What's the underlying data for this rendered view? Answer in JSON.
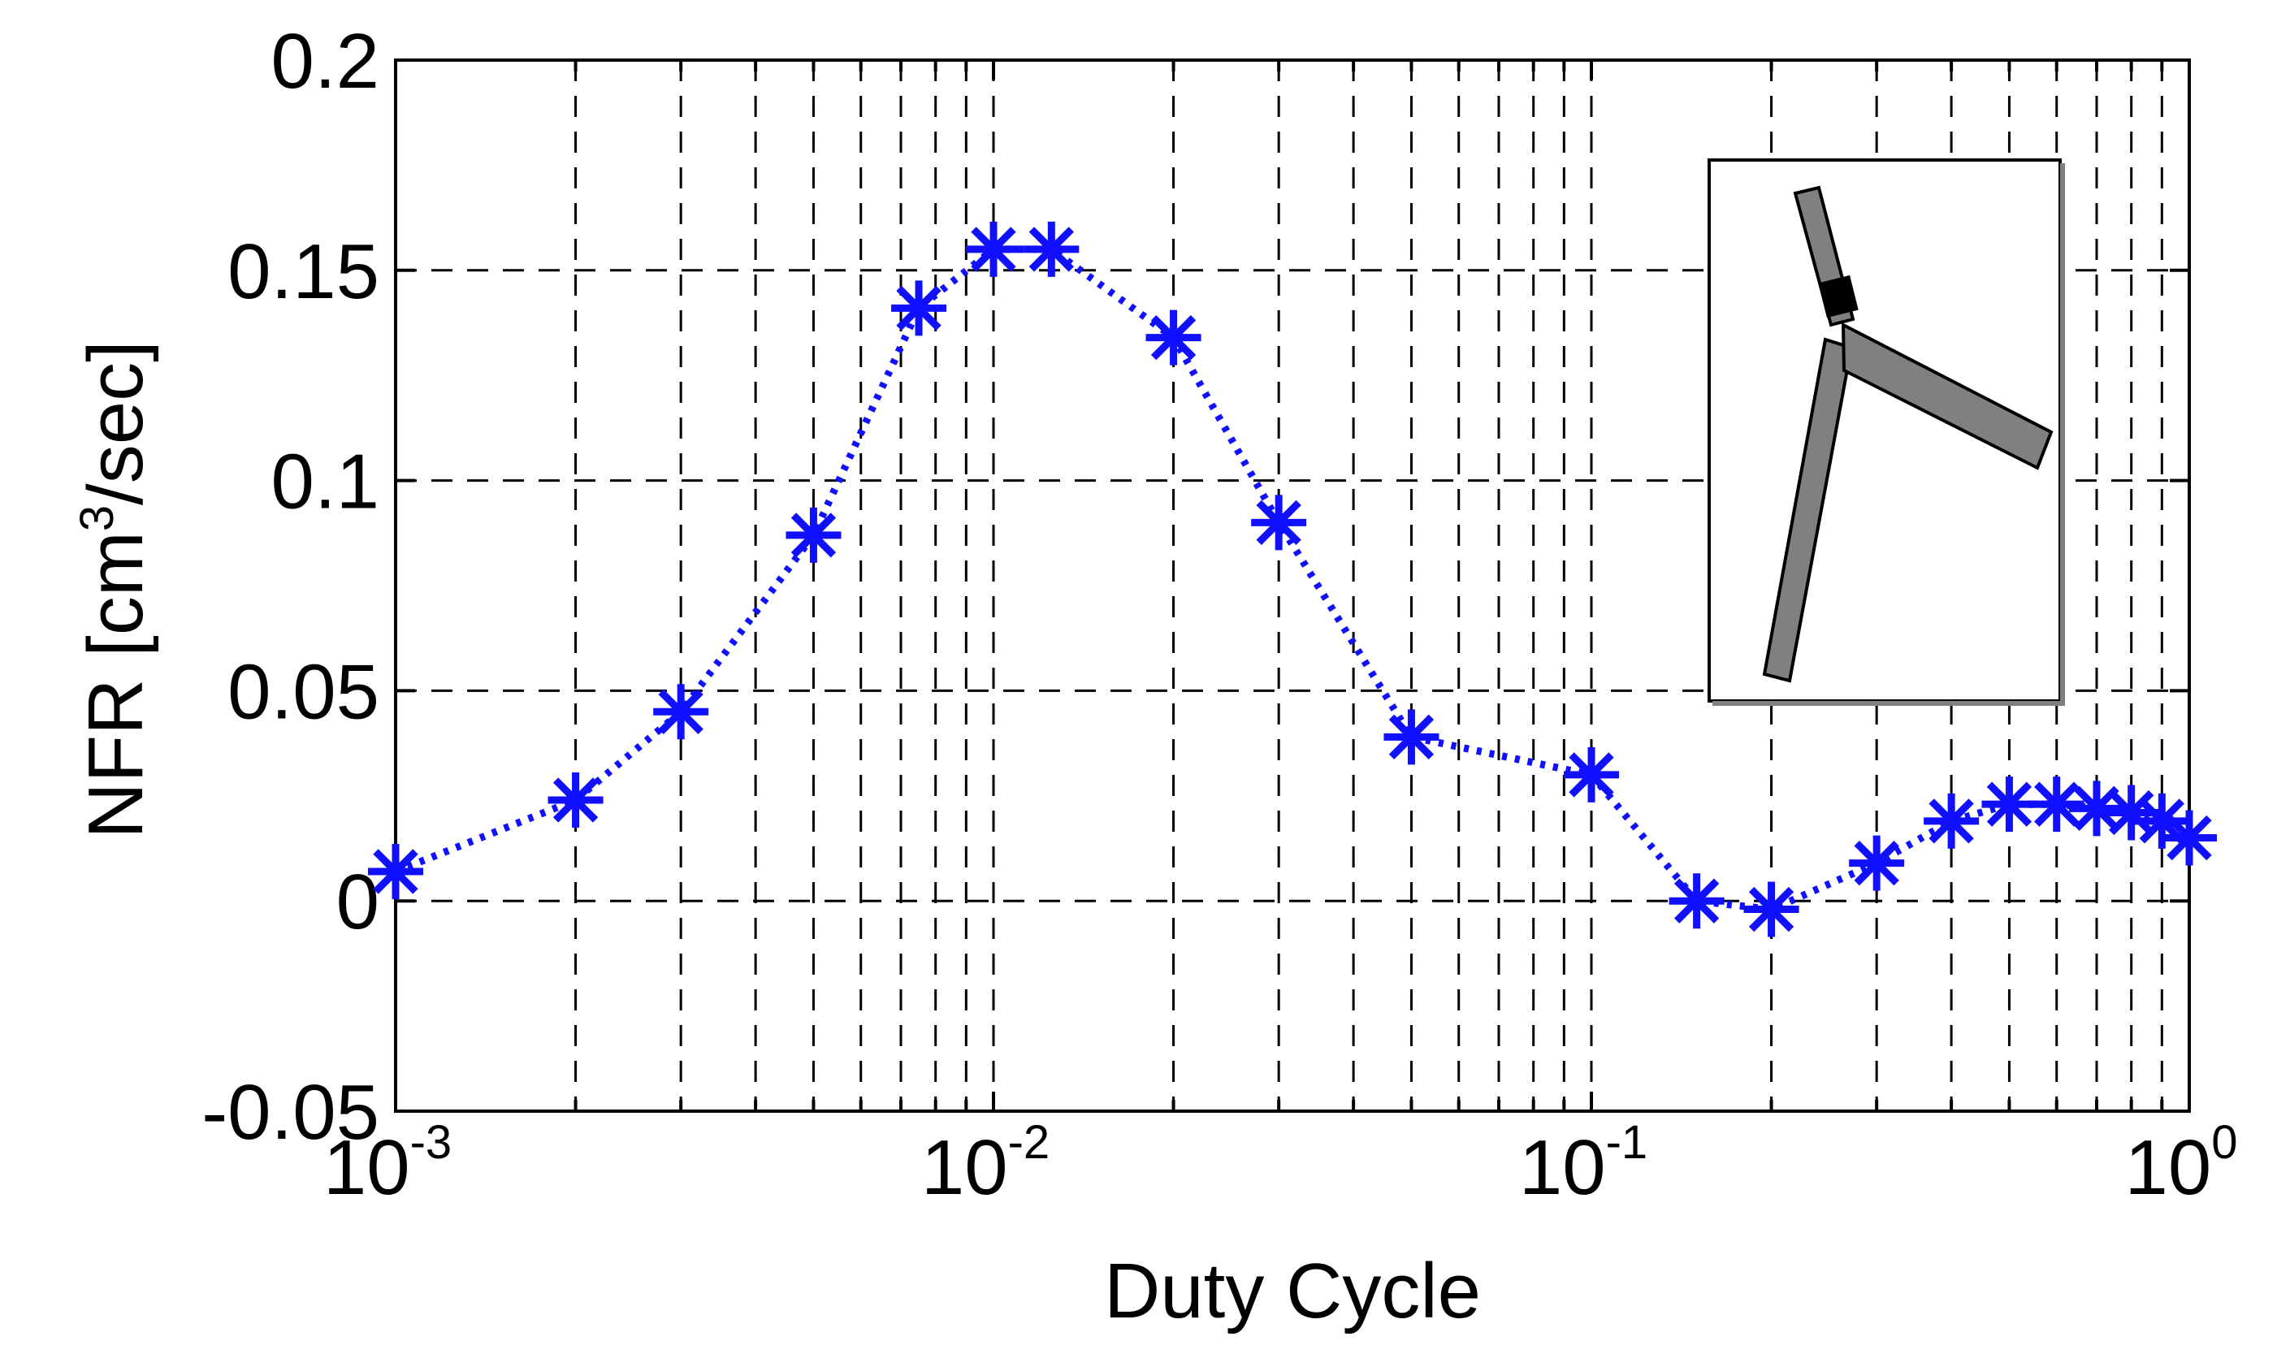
{
  "chart_data": {
    "type": "line",
    "xlabel": "Duty Cycle",
    "ylabel": "NFR [cm",
    "ylabel_sup": "3",
    "ylabel_tail": "/sec]",
    "xscale": "log",
    "xlim": [
      0.001,
      1
    ],
    "ylim": [
      -0.05,
      0.2
    ],
    "grid": true,
    "x_ticks": [
      {
        "base": "10",
        "exp": "-3",
        "value": 0.001
      },
      {
        "base": "10",
        "exp": "-2",
        "value": 0.01
      },
      {
        "base": "10",
        "exp": "-1",
        "value": 0.1
      },
      {
        "base": "10",
        "exp": "0",
        "value": 1
      }
    ],
    "y_ticks": [
      {
        "label": "-0.05",
        "value": -0.05
      },
      {
        "label": "0",
        "value": 0
      },
      {
        "label": "0.05",
        "value": 0.05
      },
      {
        "label": "0.1",
        "value": 0.1
      },
      {
        "label": "0.15",
        "value": 0.15
      },
      {
        "label": "0.2",
        "value": 0.2
      }
    ],
    "series": [
      {
        "color": "#1010ff",
        "marker": "asterisk",
        "line_style": "dotted",
        "x": [
          0.001,
          0.002,
          0.003,
          0.005,
          0.0075,
          0.01,
          0.0125,
          0.02,
          0.03,
          0.05,
          0.1,
          0.15,
          0.2,
          0.3,
          0.4,
          0.5,
          0.6,
          0.7,
          0.8,
          0.9,
          1.0
        ],
        "y": [
          0.007,
          0.024,
          0.045,
          0.087,
          0.141,
          0.155,
          0.155,
          0.134,
          0.09,
          0.039,
          0.03,
          0.0,
          -0.002,
          0.009,
          0.019,
          0.023,
          0.023,
          0.022,
          0.021,
          0.019,
          0.015
        ]
      }
    ],
    "inset": {
      "description_icon": "y-shaped-channel-diagram",
      "colors": {
        "fill": "#808080",
        "stroke": "#000000",
        "junction": "#000000"
      }
    }
  }
}
